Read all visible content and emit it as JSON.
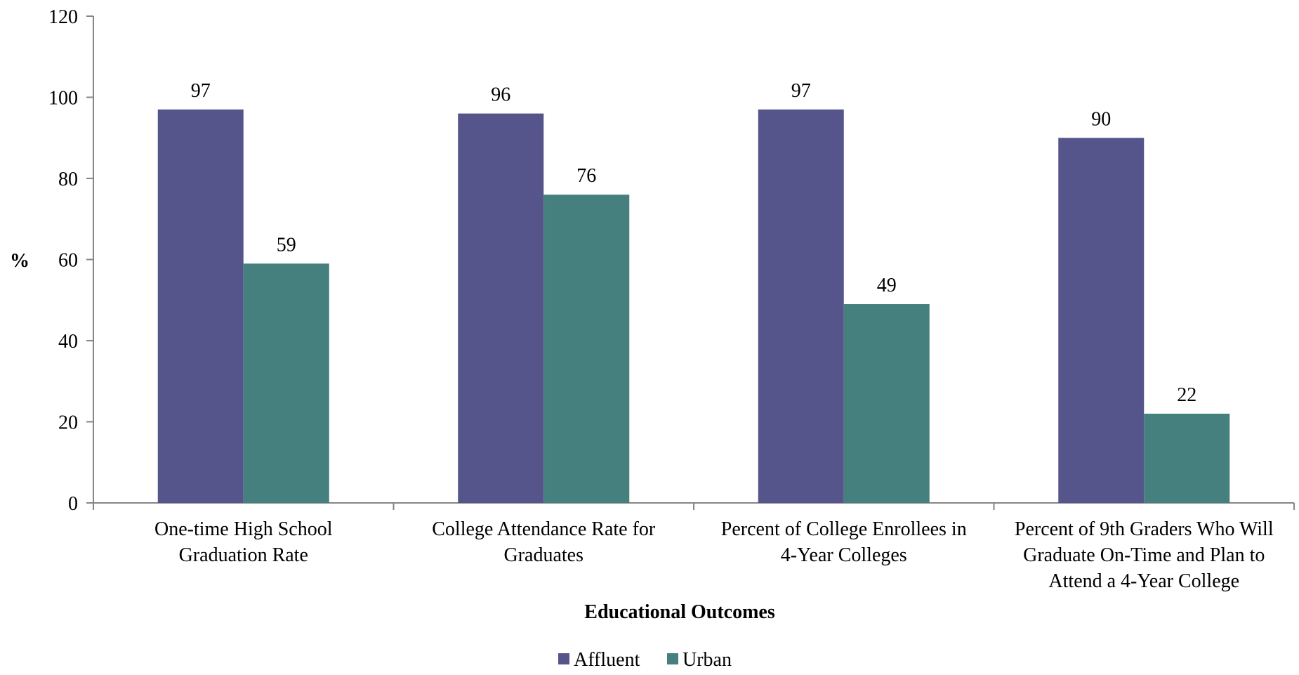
{
  "chart_data": {
    "type": "bar",
    "categories": [
      [
        "One-time High School",
        "Graduation Rate"
      ],
      [
        "College Attendance Rate for",
        "Graduates"
      ],
      [
        "Percent of College Enrollees in",
        "4-Year Colleges"
      ],
      [
        "Percent of 9th Graders Who Will",
        "Graduate On-Time and Plan to",
        "Attend a 4-Year College"
      ]
    ],
    "series": [
      {
        "name": "Affluent",
        "values": [
          97,
          96,
          97,
          90
        ],
        "color": "#56558B"
      },
      {
        "name": "Urban",
        "values": [
          59,
          76,
          49,
          22
        ],
        "color": "#45807F"
      }
    ],
    "ylabel": "%",
    "xlabel": "Educational Outcomes",
    "ylim": [
      0,
      120
    ],
    "yticks": [
      0,
      20,
      40,
      60,
      80,
      100,
      120
    ],
    "grid": false,
    "legend": "bottom"
  }
}
